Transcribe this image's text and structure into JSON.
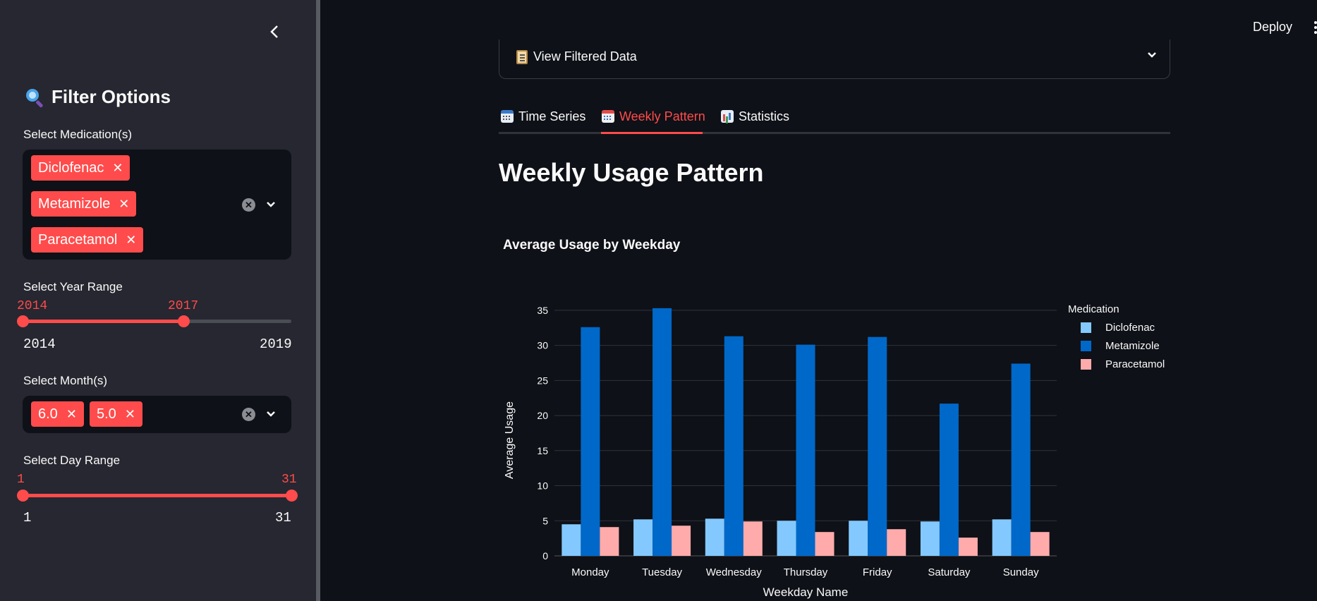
{
  "sidebar": {
    "title": "Filter Options",
    "title_icon": "magnifying-glass-icon",
    "medication_label": "Select Medication(s)",
    "medications": [
      "Diclofenac",
      "Metamizole",
      "Paracetamol"
    ],
    "year_label": "Select Year Range",
    "year_low": "2014",
    "year_high": "2017",
    "year_min": "2014",
    "year_max": "2019",
    "year_range_fraction": [
      0,
      0.6
    ],
    "month_label": "Select Month(s)",
    "months": [
      "6.0",
      "5.0"
    ],
    "day_label": "Select Day Range",
    "day_low": "1",
    "day_high": "31",
    "day_min": "1",
    "day_max": "31",
    "day_range_fraction": [
      0,
      1
    ],
    "accent": "#ff4b4b"
  },
  "header": {
    "deploy_label": "Deploy"
  },
  "expander": {
    "label": "View Filtered Data",
    "icon": "clipboard-icon"
  },
  "tabs": [
    {
      "label": "Time Series",
      "icon": "calendar-icon",
      "active": false
    },
    {
      "label": "Weekly Pattern",
      "icon": "calendar-spiral-icon",
      "active": true
    },
    {
      "label": "Statistics",
      "icon": "bar-chart-icon",
      "active": false
    }
  ],
  "main": {
    "page_title": "Weekly Usage Pattern"
  },
  "chart_data": {
    "type": "bar",
    "title": "Average Usage by Weekday",
    "xlabel": "Weekday Name",
    "ylabel": "Average Usage",
    "ylim": [
      0,
      37
    ],
    "yticks": [
      0,
      5,
      10,
      15,
      20,
      25,
      30,
      35
    ],
    "grid": true,
    "legend_title": "Medication",
    "legend_position": "right",
    "categories": [
      "Monday",
      "Tuesday",
      "Wednesday",
      "Thursday",
      "Friday",
      "Saturday",
      "Sunday"
    ],
    "series": [
      {
        "name": "Diclofenac",
        "color": "#83c9ff",
        "values": [
          4.5,
          5.2,
          5.3,
          5.0,
          5.0,
          4.9,
          5.2
        ]
      },
      {
        "name": "Metamizole",
        "color": "#0068c9",
        "values": [
          32.6,
          35.3,
          31.3,
          30.1,
          31.2,
          21.7,
          27.4
        ]
      },
      {
        "name": "Paracetamol",
        "color": "#ffabab",
        "values": [
          4.1,
          4.3,
          4.9,
          3.4,
          3.8,
          2.6,
          3.4
        ]
      }
    ]
  }
}
